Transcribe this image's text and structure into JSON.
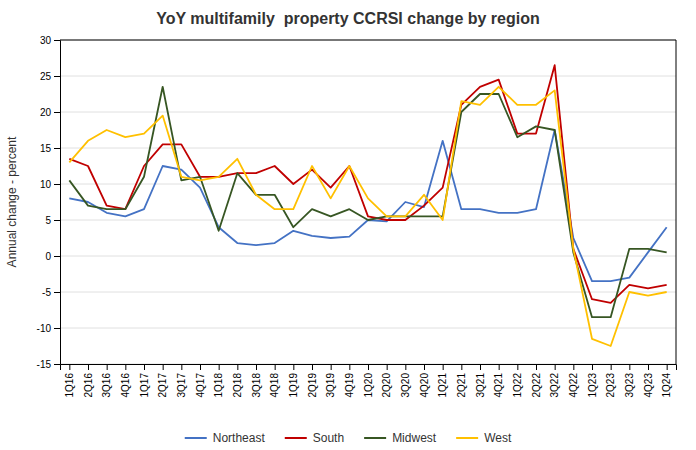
{
  "chart_data": {
    "type": "line",
    "title": "YoY multifamily  property CCRSI change by region",
    "ylabel": "Annual change - percent",
    "categories": [
      "1Q16",
      "2Q16",
      "3Q16",
      "4Q16",
      "1Q17",
      "2Q17",
      "3Q17",
      "4Q17",
      "1Q18",
      "2Q18",
      "3Q18",
      "4Q18",
      "1Q19",
      "2Q19",
      "3Q19",
      "4Q19",
      "1Q20",
      "2Q20",
      "3Q20",
      "4Q20",
      "1Q21",
      "2Q21",
      "3Q21",
      "4Q21",
      "1Q22",
      "2Q22",
      "3Q22",
      "4Q22",
      "1Q23",
      "2Q23",
      "3Q23",
      "4Q23",
      "1Q24"
    ],
    "series": [
      {
        "name": "Northeast",
        "color": "#4472C4",
        "values": [
          8.0,
          7.5,
          6.0,
          5.5,
          6.5,
          12.5,
          12.0,
          9.5,
          4.0,
          1.8,
          1.5,
          1.8,
          3.5,
          2.8,
          2.5,
          2.7,
          5.0,
          4.8,
          7.5,
          6.8,
          16.0,
          6.5,
          6.5,
          6.0,
          6.0,
          6.5,
          17.5,
          2.5,
          -3.5,
          -3.5,
          -3.0,
          0.5,
          4.0
        ]
      },
      {
        "name": "South",
        "color": "#C00000",
        "values": [
          13.5,
          12.5,
          7.0,
          6.5,
          12.5,
          15.5,
          15.5,
          11.0,
          11.0,
          11.5,
          11.5,
          12.5,
          10.0,
          12.0,
          9.5,
          12.5,
          5.5,
          5.0,
          5.0,
          7.0,
          9.5,
          21.0,
          23.5,
          24.5,
          17.0,
          17.0,
          26.5,
          1.0,
          -6.0,
          -6.5,
          -4.0,
          -4.5,
          -4.0
        ]
      },
      {
        "name": "Midwest",
        "color": "#375623",
        "values": [
          10.5,
          7.0,
          6.5,
          6.5,
          11.0,
          23.5,
          10.5,
          11.0,
          3.5,
          11.5,
          8.5,
          8.5,
          4.0,
          6.5,
          5.5,
          6.5,
          5.0,
          5.5,
          5.5,
          5.5,
          5.5,
          20.0,
          22.5,
          22.5,
          16.5,
          18.0,
          17.5,
          0.5,
          -8.5,
          -8.5,
          1.0,
          1.0,
          0.5
        ]
      },
      {
        "name": "West",
        "color": "#FFC000",
        "values": [
          13.0,
          16.0,
          17.5,
          16.5,
          17.0,
          19.5,
          11.0,
          10.5,
          11.0,
          13.5,
          8.5,
          6.5,
          6.5,
          12.5,
          8.0,
          12.5,
          8.0,
          5.5,
          5.5,
          8.5,
          5.0,
          21.5,
          21.0,
          23.5,
          21.0,
          21.0,
          23.0,
          1.0,
          -11.5,
          -12.5,
          -5.0,
          -5.5,
          -5.0
        ]
      }
    ],
    "ylim": [
      -15,
      30
    ],
    "yticks": [
      -15,
      -10,
      -5,
      0,
      5,
      10,
      15,
      20,
      25,
      30
    ],
    "grid": true,
    "legend": "bottom"
  }
}
